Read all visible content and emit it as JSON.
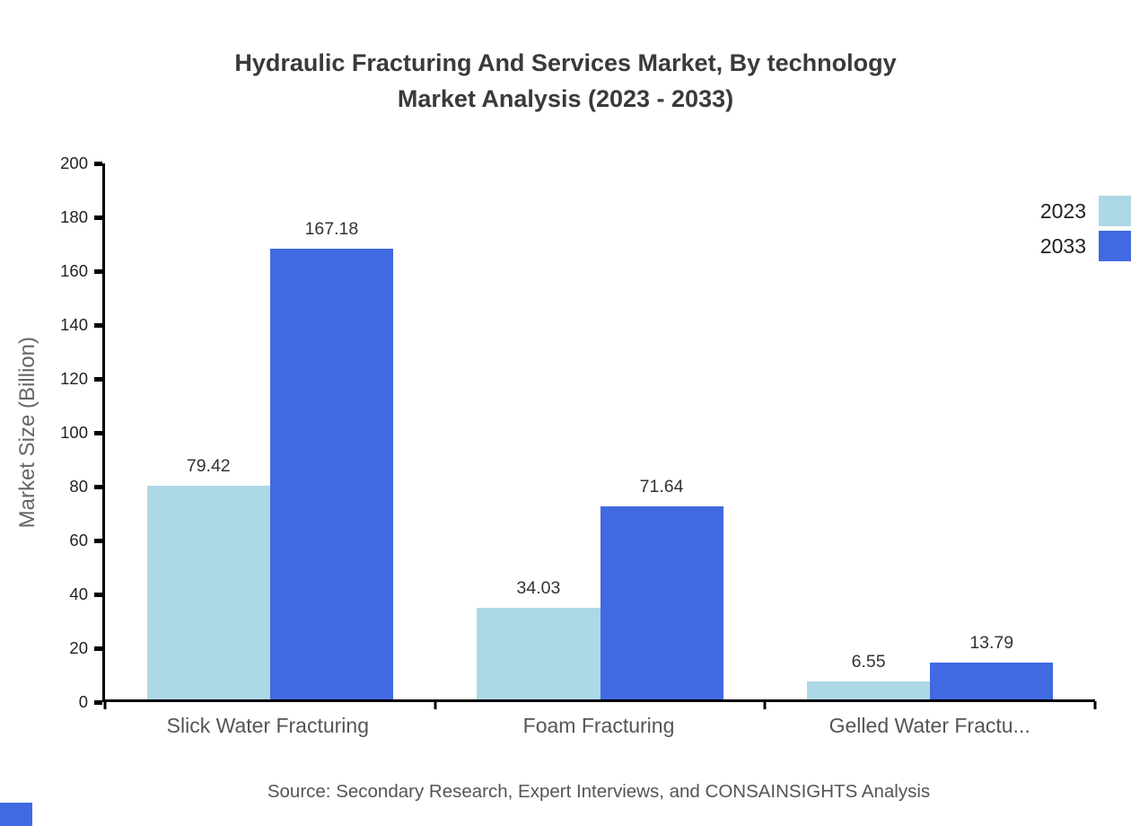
{
  "chart_data": {
    "type": "bar",
    "title": "Hydraulic Fracturing And Services Market, By technology",
    "subtitle": "Market Analysis (2023 - 2033)",
    "ylabel": "Market Size (Billion)",
    "xlabel": "",
    "ylim": [
      0,
      200
    ],
    "yticks": [
      0,
      20,
      40,
      60,
      80,
      100,
      120,
      140,
      160,
      180,
      200
    ],
    "grid": false,
    "legend_position": "top-right",
    "categories": [
      "Slick Water Fracturing",
      "Foam Fracturing",
      "Gelled Water Fractu..."
    ],
    "series": [
      {
        "name": "2023",
        "color": "#add8e6",
        "values": [
          79.42,
          34.03,
          6.55
        ]
      },
      {
        "name": "2033",
        "color": "#4169e1",
        "values": [
          167.18,
          71.64,
          13.79
        ]
      }
    ]
  },
  "footer": {
    "source": "Source: Secondary Research, Expert Interviews, and CONSAINSIGHTS Analysis"
  },
  "colors": {
    "axis": "#000000",
    "watermark": "#4169e1"
  }
}
